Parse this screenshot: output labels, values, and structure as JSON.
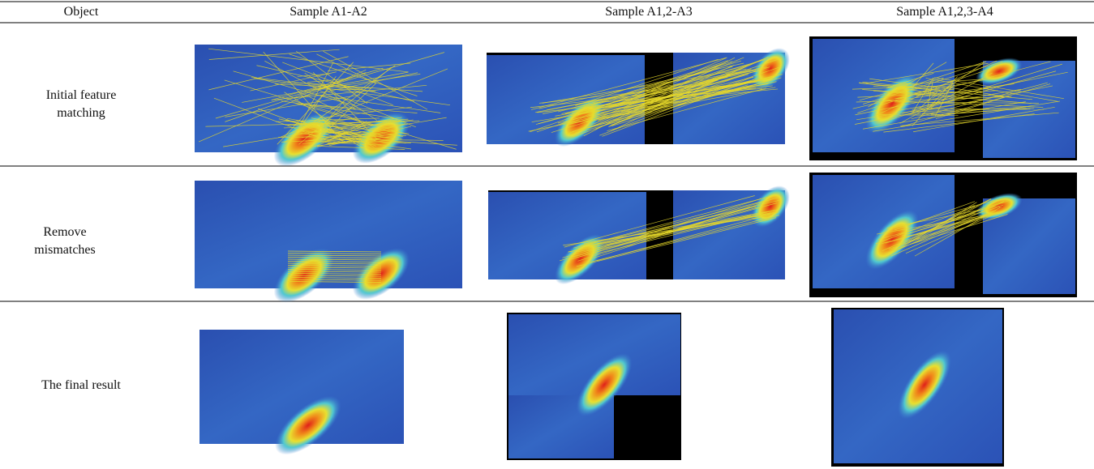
{
  "header": [
    "Object",
    "Sample A1-A2",
    "Sample A1,2-A3",
    "Sample A1,2,3-A4"
  ],
  "rows": [
    {
      "label": "Initial feature matching"
    },
    {
      "label": "Remove mismatches"
    },
    {
      "label": "The final result"
    }
  ]
}
